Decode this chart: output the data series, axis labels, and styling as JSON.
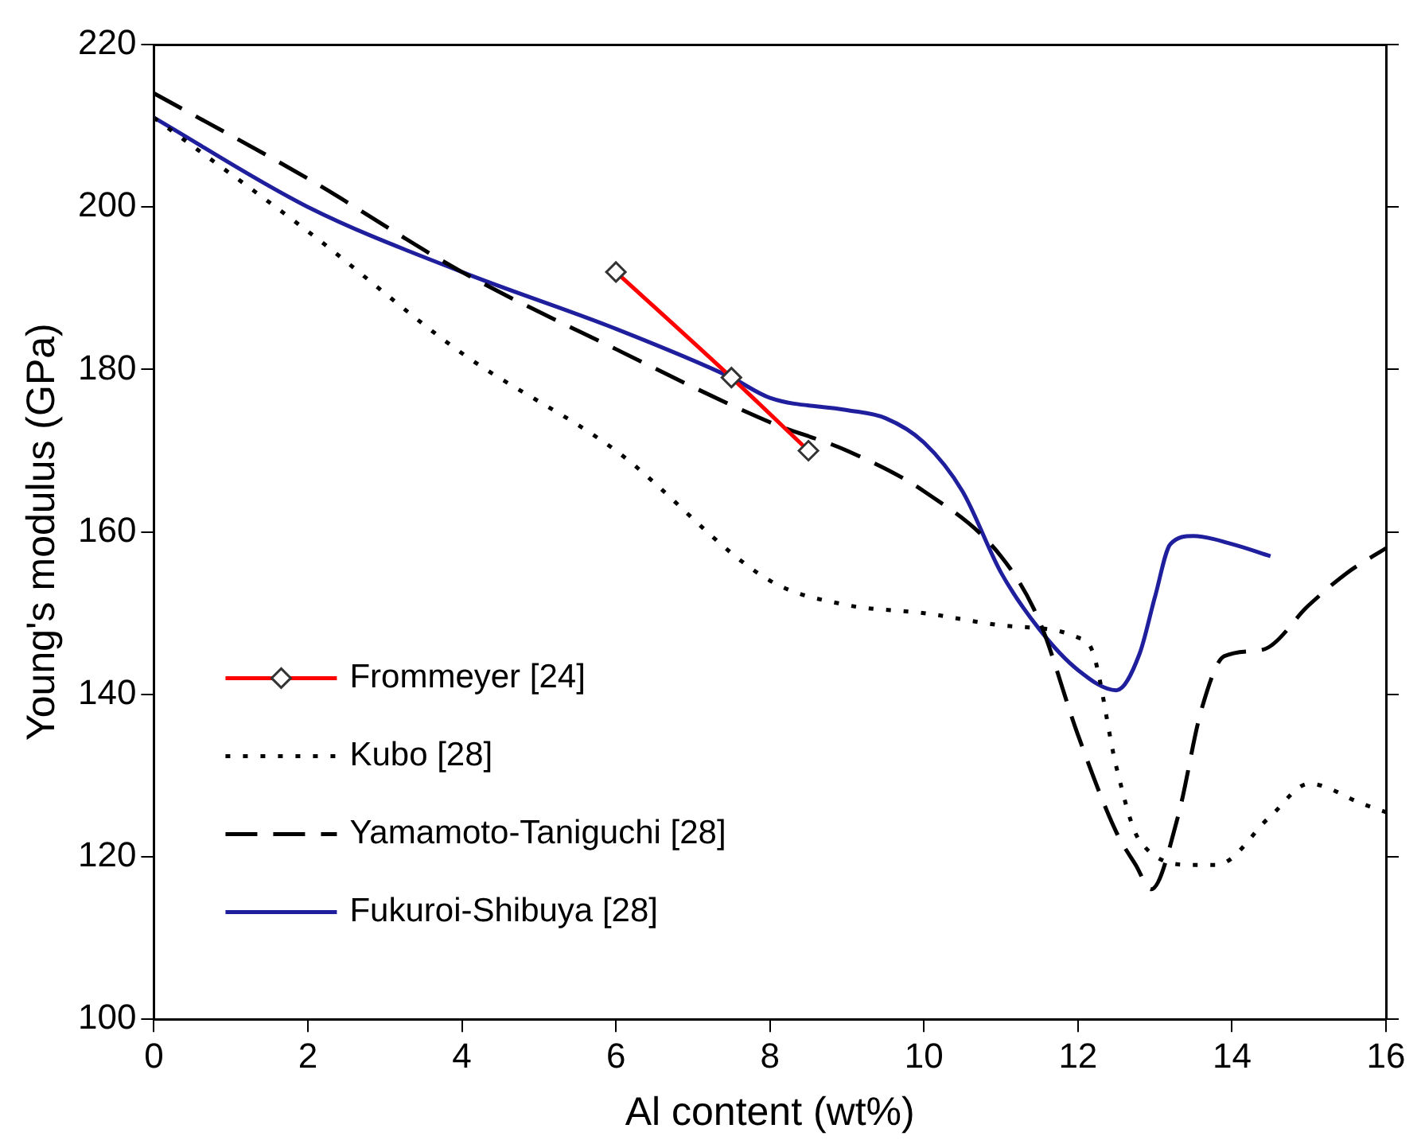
{
  "chart_data": {
    "type": "line",
    "xlabel": "Al content (wt%)",
    "ylabel": "Young's modulus (GPa)",
    "xlim": [
      0,
      16
    ],
    "ylim": [
      100,
      220
    ],
    "xticks": [
      0,
      2,
      4,
      6,
      8,
      10,
      12,
      14,
      16
    ],
    "yticks": [
      100,
      120,
      140,
      160,
      180,
      200,
      220
    ],
    "legend": "left",
    "series": [
      {
        "name": "Frommeyer [24]",
        "color": "#ff0000",
        "marker": "diamond",
        "line_style": "solid",
        "x": [
          6,
          7.5,
          8.5
        ],
        "values": [
          192,
          179,
          170
        ]
      },
      {
        "name": "Kubo [28]",
        "color": "#000000",
        "marker": "none",
        "line_style": "dotted",
        "x": [
          0,
          2,
          4,
          6,
          8,
          9,
          10,
          11,
          12,
          12.2,
          12.5,
          12.8,
          13.5,
          13.8,
          14.5,
          15,
          15.7,
          16
        ],
        "values": [
          211,
          197,
          182,
          170,
          154,
          151,
          150,
          148.5,
          147,
          145,
          131,
          122,
          119,
          119,
          125,
          129,
          126.5,
          125.5
        ]
      },
      {
        "name": "Yamamoto-Taniguchi [28]",
        "color": "#000000",
        "marker": "none",
        "line_style": "dashed",
        "x": [
          0,
          2,
          4,
          6,
          8,
          9,
          10,
          11,
          11.5,
          12,
          12.5,
          12.75,
          12.95,
          13.3,
          13.6,
          13.9,
          14.4,
          15,
          15.5,
          16
        ],
        "values": [
          214,
          203.5,
          192,
          182.5,
          173.5,
          170,
          165,
          157,
          149,
          135,
          123,
          119,
          116,
          125,
          138,
          144.7,
          145.5,
          151,
          155,
          158
        ]
      },
      {
        "name": "Fukuroi-Shibuya [28]",
        "color": "#1f1f9e",
        "marker": "none",
        "line_style": "solid",
        "x": [
          0,
          2,
          4,
          6,
          7.5,
          8,
          9,
          9.5,
          10,
          10.5,
          11,
          11.5,
          12,
          12.5,
          12.8,
          13,
          13.2,
          13.5,
          14,
          14.5
        ],
        "values": [
          211,
          200,
          192,
          185,
          179,
          176.5,
          175,
          174,
          171,
          165,
          155,
          148,
          143,
          140.5,
          145,
          152,
          158.5,
          159.5,
          158.5,
          157
        ]
      }
    ]
  }
}
